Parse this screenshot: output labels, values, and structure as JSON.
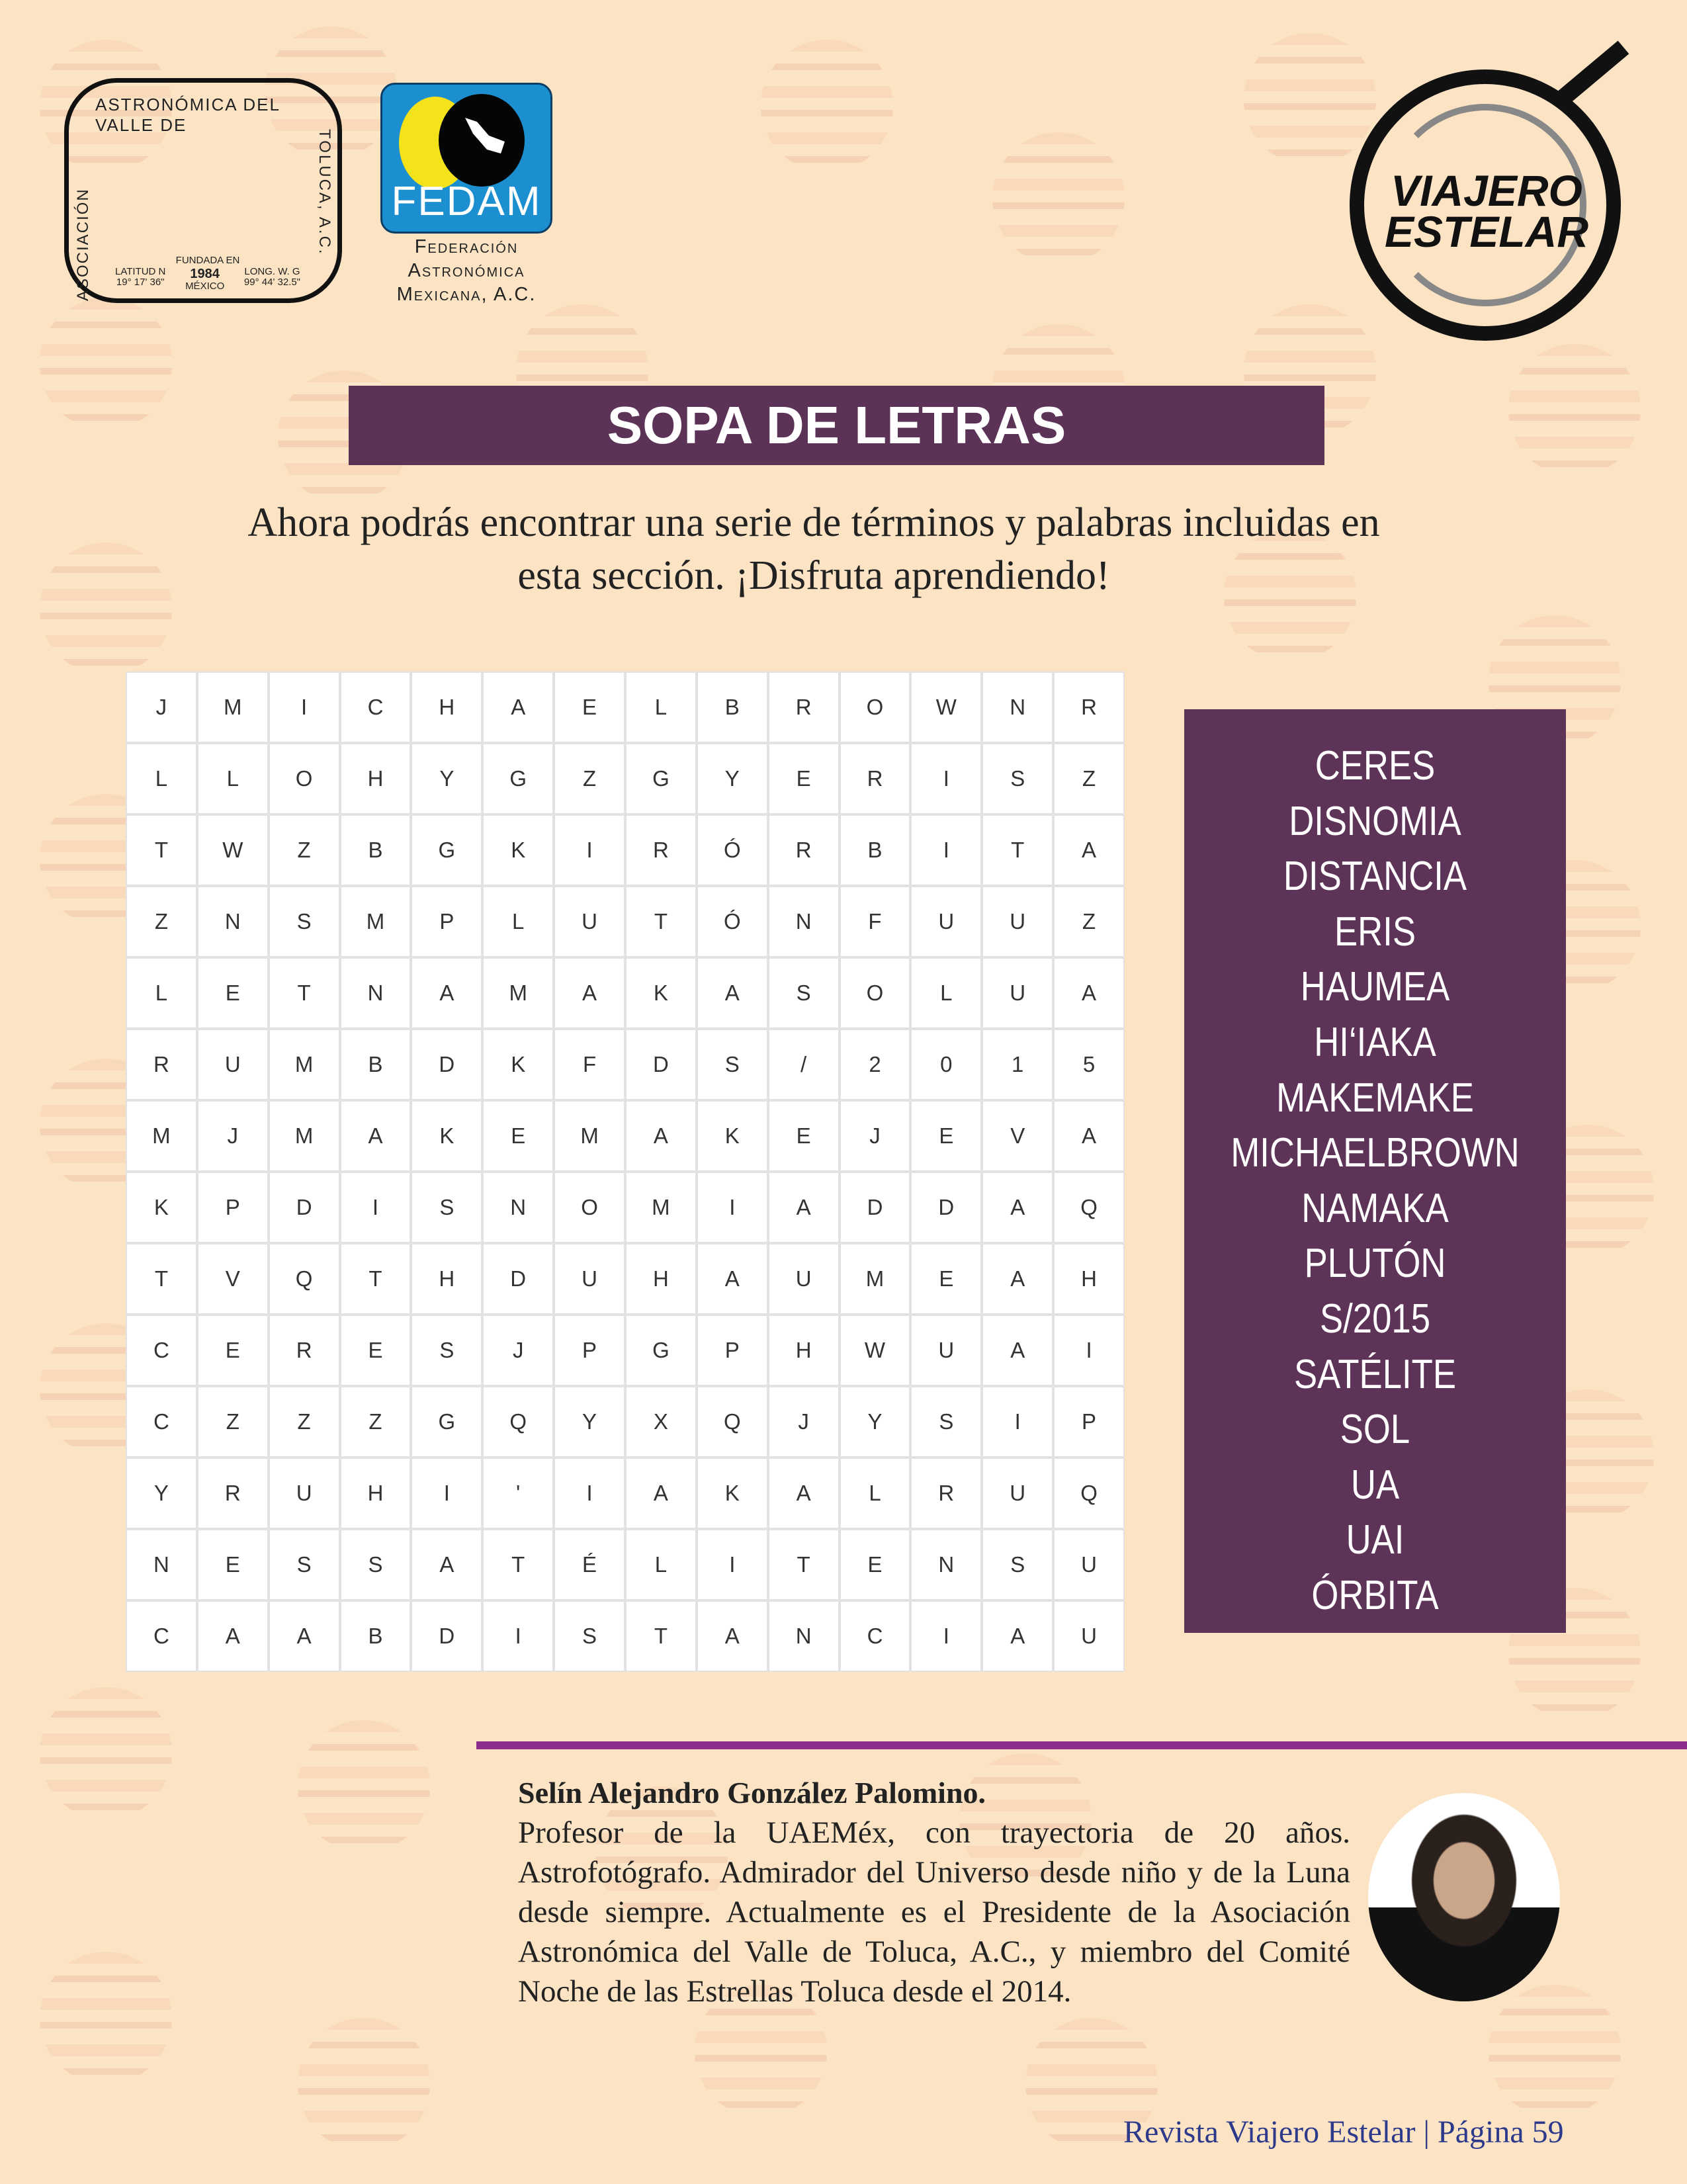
{
  "logos": {
    "asociacion": {
      "arc_text": "ASTRONÓMICA DEL VALLE DE",
      "left_text": "ASOCIACIÓN",
      "right_text": "TOLUCA, A.C.",
      "founded": "FUNDADA EN",
      "year": "1984",
      "country": "MÉXICO",
      "lat_label": "LATITUD N",
      "lat": "19° 17' 36\"",
      "long_label": "LONG. W. G",
      "long": "99° 44' 32.5\""
    },
    "fedam": {
      "acronym": "FEDAM",
      "line1": "Federación",
      "line2": "Astronómica",
      "line3": "Mexicana, A.C."
    },
    "viajero": {
      "line1": "VIAJERO",
      "line2": "ESTELAR"
    }
  },
  "title": "SOPA DE LETRAS",
  "intro": {
    "line1": "Ahora podrás encontrar una serie de términos y palabras incluidas en",
    "line2": "esta sección. ¡Disfruta aprendiendo!"
  },
  "grid": [
    [
      "J",
      "M",
      "I",
      "C",
      "H",
      "A",
      "E",
      "L",
      "B",
      "R",
      "O",
      "W",
      "N",
      "R"
    ],
    [
      "L",
      "L",
      "O",
      "H",
      "Y",
      "G",
      "Z",
      "G",
      "Y",
      "E",
      "R",
      "I",
      "S",
      "Z"
    ],
    [
      "T",
      "W",
      "Z",
      "B",
      "G",
      "K",
      "I",
      "R",
      "Ó",
      "R",
      "B",
      "I",
      "T",
      "A"
    ],
    [
      "Z",
      "N",
      "S",
      "M",
      "P",
      "L",
      "U",
      "T",
      "Ó",
      "N",
      "F",
      "U",
      "U",
      "Z"
    ],
    [
      "L",
      "E",
      "T",
      "N",
      "A",
      "M",
      "A",
      "K",
      "A",
      "S",
      "O",
      "L",
      "U",
      "A"
    ],
    [
      "R",
      "U",
      "M",
      "B",
      "D",
      "K",
      "F",
      "D",
      "S",
      "/",
      "2",
      "0",
      "1",
      "5"
    ],
    [
      "M",
      "J",
      "M",
      "A",
      "K",
      "E",
      "M",
      "A",
      "K",
      "E",
      "J",
      "E",
      "V",
      "A"
    ],
    [
      "K",
      "P",
      "D",
      "I",
      "S",
      "N",
      "O",
      "M",
      "I",
      "A",
      "D",
      "D",
      "A",
      "Q"
    ],
    [
      "T",
      "V",
      "Q",
      "T",
      "H",
      "D",
      "U",
      "H",
      "A",
      "U",
      "M",
      "E",
      "A",
      "H"
    ],
    [
      "C",
      "E",
      "R",
      "E",
      "S",
      "J",
      "P",
      "G",
      "P",
      "H",
      "W",
      "U",
      "A",
      "I"
    ],
    [
      "C",
      "Z",
      "Z",
      "Z",
      "G",
      "Q",
      "Y",
      "X",
      "Q",
      "J",
      "Y",
      "S",
      "I",
      "P"
    ],
    [
      "Y",
      "R",
      "U",
      "H",
      "I",
      "'",
      "I",
      "A",
      "K",
      "A",
      "L",
      "R",
      "U",
      "Q"
    ],
    [
      "N",
      "E",
      "S",
      "S",
      "A",
      "T",
      "É",
      "L",
      "I",
      "T",
      "E",
      "N",
      "S",
      "U"
    ],
    [
      "C",
      "A",
      "A",
      "B",
      "D",
      "I",
      "S",
      "T",
      "A",
      "N",
      "C",
      "I",
      "A",
      "U"
    ]
  ],
  "words": [
    "CERES",
    "DISNOMIA",
    "DISTANCIA",
    "ERIS",
    "HAUMEA",
    "HI‘IAKA",
    "MAKEMAKE",
    "MICHAELBROWN",
    "NAMAKA",
    "PLUTÓN",
    "S/2015",
    "SATÉLITE",
    "SOL",
    "UA",
    "UAI",
    "ÓRBITA"
  ],
  "bio": {
    "name": "Selín Alejandro González Palomino.",
    "text": "Profesor de la UAEMéx, con trayectoria de 20 años. Astrofotógrafo. Admirador del Universo desde niño y de la Luna desde siempre. Actualmente es el Presidente de la Asociación Astronómica del Valle de Toluca, A.C., y miembro del Comité Noche de las Estrellas Toluca desde el 2014."
  },
  "footer": {
    "magazine": "Revista Viajero Estelar",
    "separator": "|",
    "page": "Página 59"
  },
  "colors": {
    "background": "#fbe3c3",
    "title_bar": "#5c3357",
    "word_box": "#5e3358",
    "rule": "#8e2c8c",
    "footer_text": "#2d3a8c"
  }
}
